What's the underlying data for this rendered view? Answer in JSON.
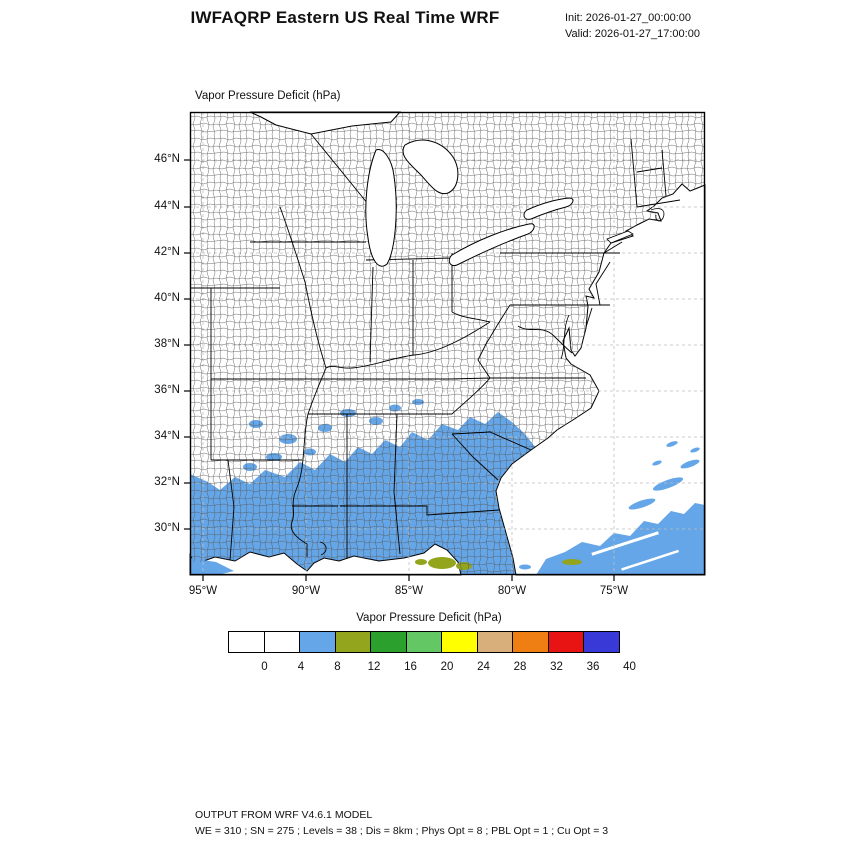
{
  "header": {
    "title": "IWFAQRP Eastern US Real Time WRF",
    "init_label": "Init: 2026-01-27_00:00:00",
    "valid_label": "Valid: 2026-01-27_17:00:00"
  },
  "map": {
    "field_title": "Vapor Pressure Deficit   (hPa)",
    "lat_ticks": [
      "46°N",
      "44°N",
      "42°N",
      "40°N",
      "38°N",
      "36°N",
      "34°N",
      "32°N",
      "30°N"
    ],
    "lon_ticks": [
      "95°W",
      "90°W",
      "85°W",
      "80°W",
      "75°W"
    ]
  },
  "colorbar": {
    "title": "Vapor Pressure Deficit  (hPa)",
    "tick_labels": [
      "0",
      "4",
      "8",
      "12",
      "16",
      "20",
      "24",
      "28",
      "32",
      "36",
      "40"
    ],
    "colors": [
      "#ffffff",
      "#ffffff",
      "#64a6e8",
      "#93a41d",
      "#2ca02c",
      "#63c763",
      "#ffff00",
      "#d8af7a",
      "#f07f13",
      "#e81414",
      "#3939d8"
    ]
  },
  "colors": {
    "field_blue": "#64a6e8",
    "field_olive": "#93a41d"
  },
  "footer": {
    "line1": "OUTPUT FROM WRF V4.6.1 MODEL",
    "line2": "WE = 310 ; SN = 275 ; Levels = 38 ; Dis = 8km ; Phys Opt = 8 ; PBL Opt = 1 ; Cu Opt = 3"
  }
}
